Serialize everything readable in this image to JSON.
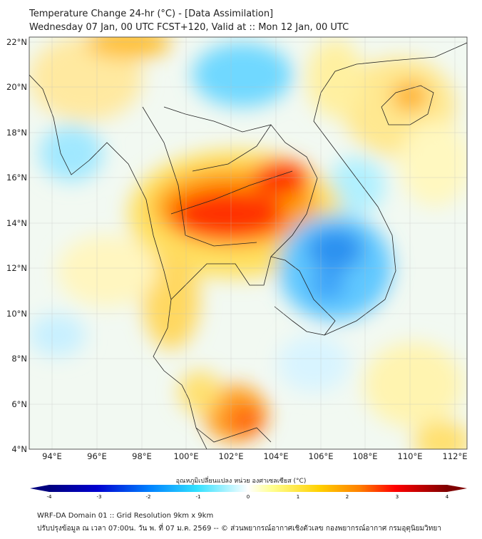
{
  "title_line1": "Temperature Change 24-hr (°C) - [Data Assimilation]",
  "title_line2": "Wednesday 07 Jan, 00 UTC FCST+120, Valid at :: Mon 12 Jan, 00 UTC",
  "lat_labels": [
    "4°N",
    "6°N",
    "8°N",
    "10°N",
    "12°N",
    "14°N",
    "16°N",
    "18°N",
    "20°N",
    "22°N"
  ],
  "lon_labels": [
    "94°E",
    "96°E",
    "98°E",
    "100°E",
    "102°E",
    "104°E",
    "106°E",
    "108°E",
    "110°E",
    "112°E"
  ],
  "colorbar": {
    "title": "อุณหภูมิเปลี่ยนแปลง หน่วย องศาเซลเซียส (°C)",
    "ticks": [
      "-4",
      "-3",
      "-2",
      "-1",
      "0",
      "1",
      "2",
      "3",
      "4"
    ],
    "colors": [
      "#00007f",
      "#0000e0",
      "#0070ff",
      "#2fd0ff",
      "#c8f8ff",
      "#ffffff",
      "#ffff90",
      "#ffd000",
      "#ff8000",
      "#ff0000",
      "#7f0000"
    ]
  },
  "footer_line1": "WRF-DA Domain 01 :: Grid Resolution 9km x 9km",
  "footer_line2": "ปรับปรุงข้อมูล ณ เวลา 07:00น. วัน พ. ที่ 07 ม.ค. 2569 -- © ส่วนพยากรณ์อากาศเชิงตัวเลข กองพยากรณ์อากาศ กรมอุตุนิยมวิทยา"
}
